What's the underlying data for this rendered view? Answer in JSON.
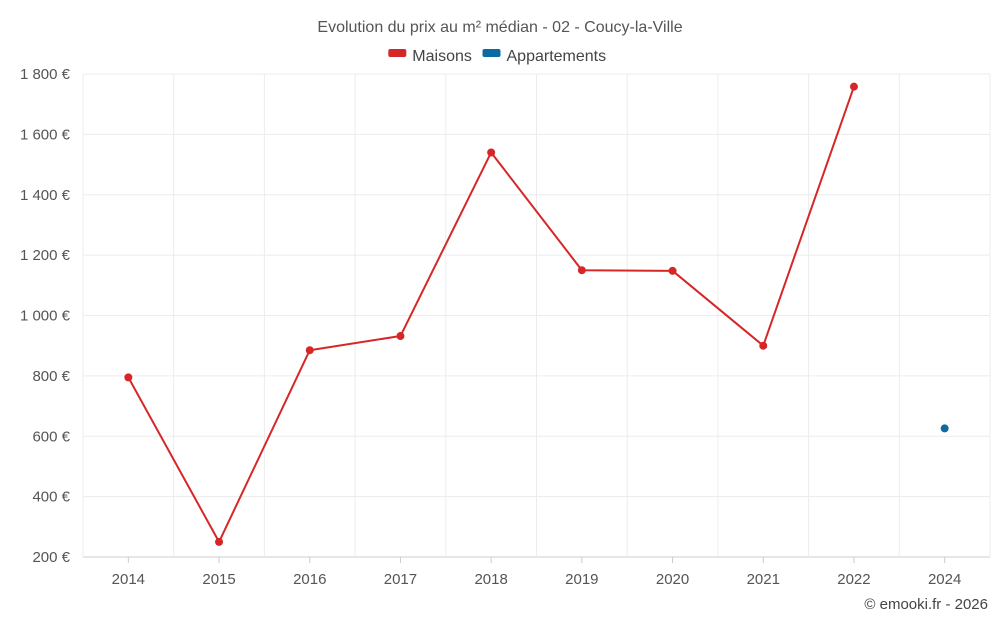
{
  "chart_data": {
    "type": "line",
    "title": "Evolution du prix au m² médian - 02 - Coucy-la-Ville",
    "x": [
      "2014",
      "2015",
      "2016",
      "2017",
      "2018",
      "2019",
      "2020",
      "2021",
      "2022",
      "2024"
    ],
    "ylim": [
      200,
      1800
    ],
    "yticks": [
      200,
      400,
      600,
      800,
      1000,
      1200,
      1400,
      1600,
      1800
    ],
    "ytick_labels": [
      "200 €",
      "400 €",
      "600 €",
      "800 €",
      "1 000 €",
      "1 200 €",
      "1 400 €",
      "1 600 €",
      "1 800 €"
    ],
    "grid": true,
    "legend": "top-center",
    "series": [
      {
        "name": "Maisons",
        "color": "#d62728",
        "values": [
          795,
          250,
          885,
          932,
          1540,
          1150,
          1148,
          900,
          1758,
          null
        ]
      },
      {
        "name": "Appartements",
        "color": "#0b6aa2",
        "values": [
          null,
          null,
          null,
          null,
          null,
          null,
          null,
          null,
          null,
          626
        ]
      }
    ]
  },
  "credit": "© emooki.fr - 2026"
}
